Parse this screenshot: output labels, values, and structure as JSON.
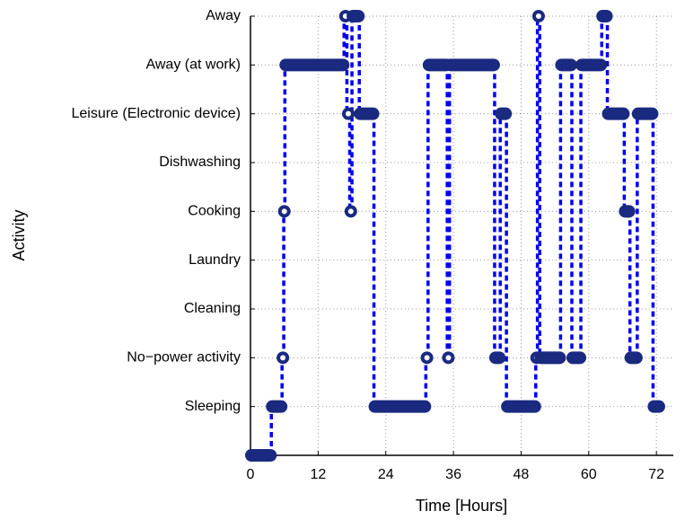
{
  "chart_data": {
    "type": "step",
    "xlabel": "Time [Hours]",
    "ylabel": "Activity",
    "x_edges": [
      0,
      3.7,
      5.6,
      5.9,
      6.1,
      16.6,
      17.1,
      17.6,
      18,
      19.3,
      21.9,
      31.1,
      31.5,
      34.9,
      35.3,
      43.3,
      44.3,
      45.4,
      50.6,
      50.9,
      51.3,
      55.0,
      57.0,
      58.6,
      62.3,
      63.3,
      66.3,
      67.3,
      68.6,
      71.4,
      72.6
    ],
    "values": [
      0,
      1,
      2,
      5,
      8,
      9,
      7,
      5,
      9,
      7,
      1,
      2,
      8,
      2,
      8,
      2,
      7,
      1,
      2,
      9,
      2,
      8,
      2,
      8,
      9,
      7,
      5,
      2,
      7,
      1
    ],
    "color": "#1a2a80",
    "line_color": "#0000ee",
    "xlim": [
      0,
      75
    ],
    "xticks": [
      0,
      12,
      24,
      36,
      48,
      60,
      72
    ],
    "ylim": [
      0,
      9
    ],
    "yticks": [
      {
        "value": 1,
        "label": "Sleeping"
      },
      {
        "value": 2,
        "label": "No−power activity"
      },
      {
        "value": 3,
        "label": "Cleaning"
      },
      {
        "value": 4,
        "label": "Laundry"
      },
      {
        "value": 5,
        "label": "Cooking"
      },
      {
        "value": 6,
        "label": "Dishwashing"
      },
      {
        "value": 7,
        "label": "Leisure (Electronic device)"
      },
      {
        "value": 8,
        "label": "Away (at work)"
      },
      {
        "value": 9,
        "label": "Away"
      }
    ],
    "grid": true
  }
}
